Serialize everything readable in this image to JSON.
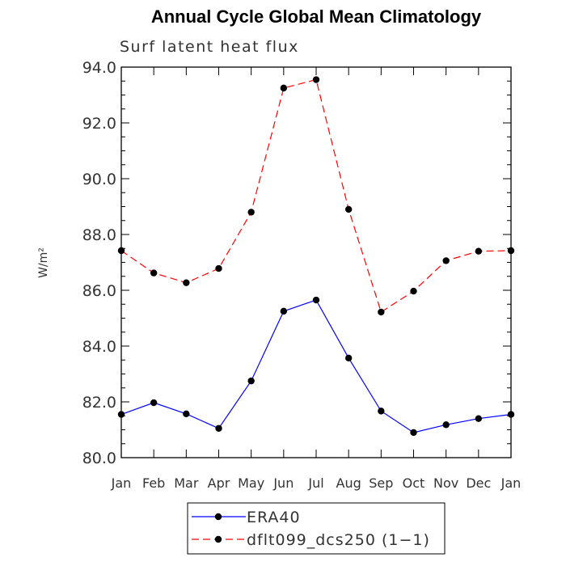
{
  "chart_data": {
    "type": "line",
    "title": "Annual Cycle Global Mean Climatology",
    "subtitle": "Surf latent heat flux",
    "xlabel": "",
    "ylabel": "W/m²",
    "categories": [
      "Jan",
      "Feb",
      "Mar",
      "Apr",
      "May",
      "Jun",
      "Jul",
      "Aug",
      "Sep",
      "Oct",
      "Nov",
      "Dec",
      "Jan"
    ],
    "ylim": [
      80.0,
      94.0
    ],
    "yticks": [
      "80.0",
      "82.0",
      "84.0",
      "86.0",
      "88.0",
      "90.0",
      "92.0",
      "94.0"
    ],
    "grid": false,
    "legend_placement": "bottom",
    "series": [
      {
        "name": "ERA40",
        "color": "#0000ff",
        "dash": "solid",
        "values": [
          81.55,
          81.97,
          81.57,
          81.05,
          82.75,
          85.25,
          85.65,
          83.57,
          81.67,
          80.9,
          81.18,
          81.4,
          81.55
        ]
      },
      {
        "name": "dflt099_dcs250 (1−1)",
        "color": "#ff0000",
        "dash": "dashed",
        "values": [
          87.42,
          86.62,
          86.27,
          86.78,
          88.8,
          93.25,
          93.55,
          88.9,
          85.22,
          85.97,
          87.06,
          87.4,
          87.42
        ]
      }
    ]
  }
}
